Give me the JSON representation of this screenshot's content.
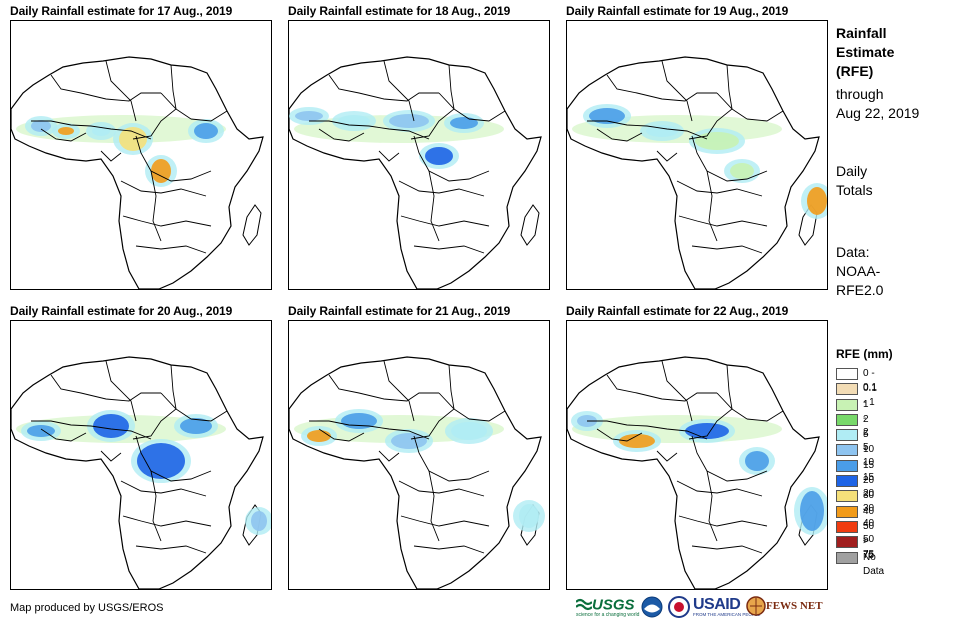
{
  "panels": [
    {
      "title": "Daily Rainfall estimate for 17 Aug., 2019"
    },
    {
      "title": "Daily Rainfall estimate for 18 Aug., 2019"
    },
    {
      "title": "Daily Rainfall estimate for 19 Aug., 2019"
    },
    {
      "title": "Daily Rainfall estimate for 20 Aug., 2019"
    },
    {
      "title": "Daily Rainfall estimate for 21 Aug., 2019"
    },
    {
      "title": "Daily Rainfall estimate for 22 Aug., 2019"
    }
  ],
  "info": {
    "line1": "Rainfall",
    "line2": "Estimate",
    "line3": "(RFE)",
    "through_label": "through",
    "through_date": "Aug 22, 2019",
    "daily1": "Daily",
    "daily2": "Totals",
    "data1": "Data:",
    "data2": "NOAA-",
    "data3": "RFE2.0"
  },
  "legend": {
    "title": "RFE (mm)",
    "items": [
      {
        "label": "0 - 0.1",
        "color": "#ffffff"
      },
      {
        "label": "0.1 - 1",
        "color": "#f2dcb5"
      },
      {
        "label": "1 - 2",
        "color": "#c8f2b4"
      },
      {
        "label": "2 - 5",
        "color": "#78d96a"
      },
      {
        "label": "5 - 10",
        "color": "#b0ecf4"
      },
      {
        "label": "10 - 15",
        "color": "#8ec4f0"
      },
      {
        "label": "15 - 20",
        "color": "#4a9de8"
      },
      {
        "label": "20 - 30",
        "color": "#1e64e6"
      },
      {
        "label": "30 - 40",
        "color": "#f5e07a"
      },
      {
        "label": "40 - 50",
        "color": "#f29b1a"
      },
      {
        "label": "50 - 75",
        "color": "#f03c10"
      },
      {
        "label": "> 75",
        "color": "#a01e1e"
      },
      {
        "label": "No Data",
        "color": "#a0a0a0"
      }
    ]
  },
  "credit": "Map produced by USGS/EROS",
  "logos": {
    "usgs": "USGS",
    "usgs_tag": "science for a changing world",
    "usaid": "USAID",
    "usaid_tag": "FROM THE AMERICAN PEOPLE",
    "fews": "FEWS NET"
  }
}
